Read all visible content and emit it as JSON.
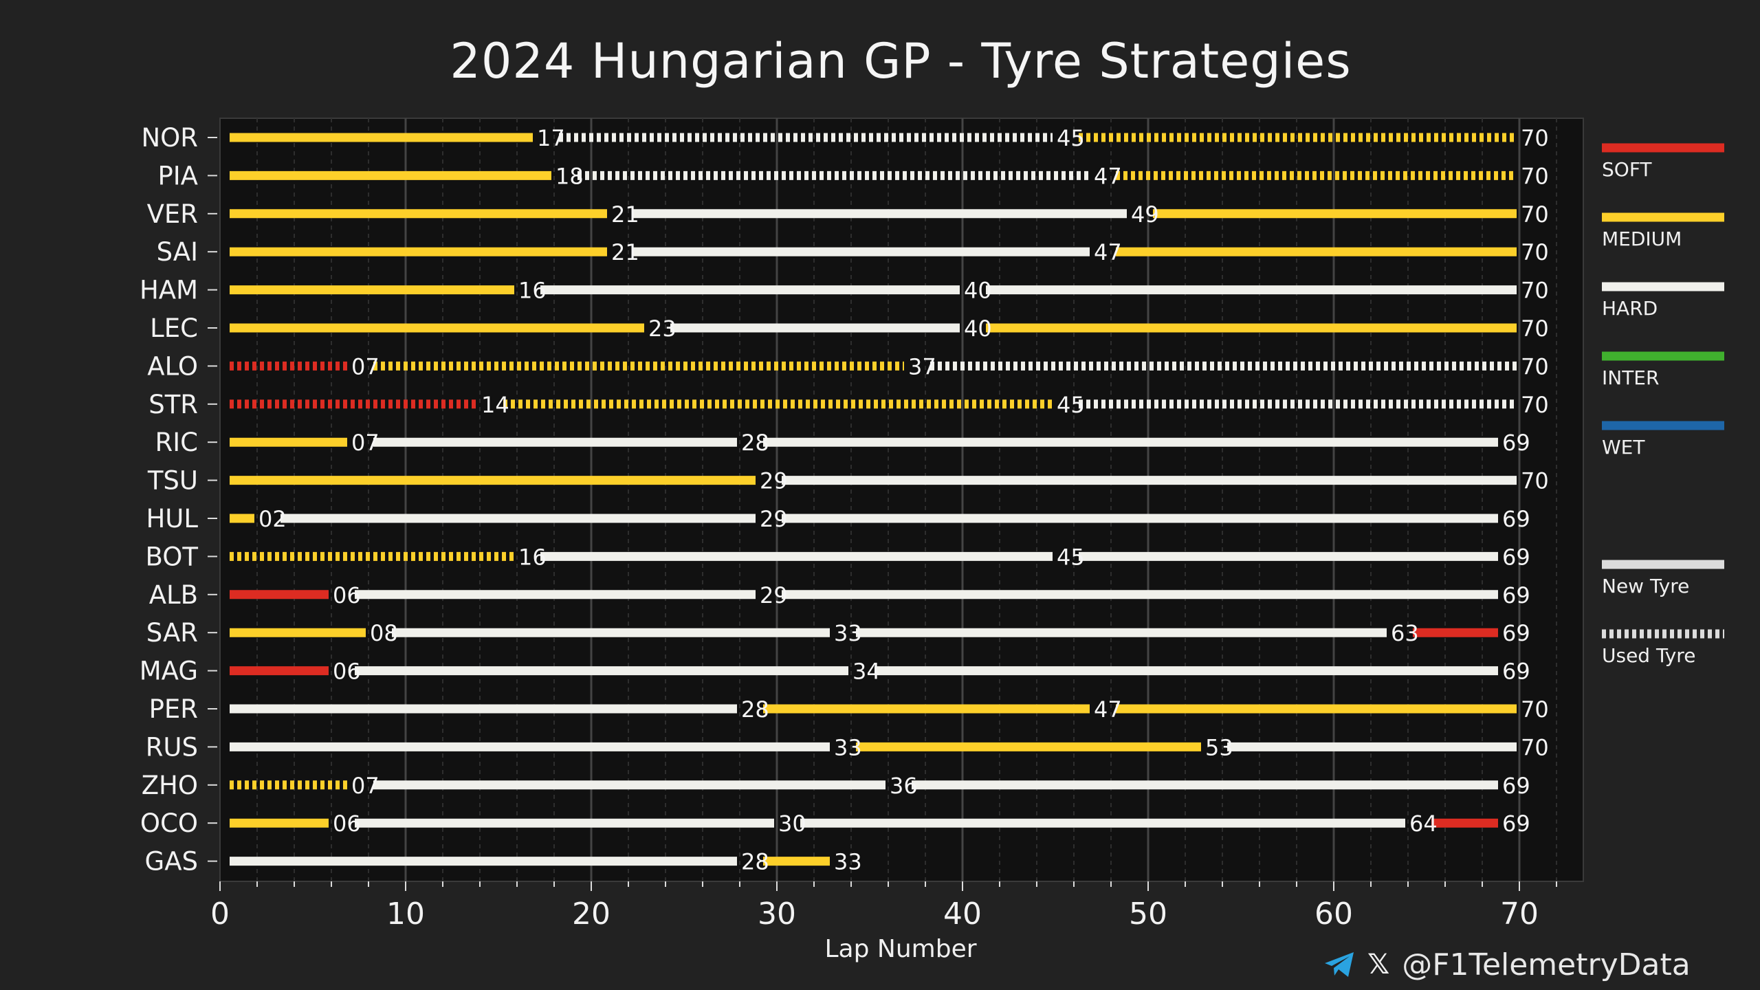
{
  "chart_data": {
    "type": "bar",
    "title": "2024 Hungarian GP - Tyre Strategies",
    "xlabel": "Lap Number",
    "ylabel": "",
    "xlim": [
      0,
      73
    ],
    "x_ticks": [
      0,
      10,
      20,
      30,
      40,
      50,
      60,
      70
    ],
    "grid": "vertical",
    "compounds": [
      {
        "name": "SOFT",
        "color": "#dd2c22"
      },
      {
        "name": "MEDIUM",
        "color": "#fdd02a"
      },
      {
        "name": "HARD",
        "color": "#f0f0eb"
      },
      {
        "name": "INTER",
        "color": "#40b02e"
      },
      {
        "name": "WET",
        "color": "#1e66a8"
      }
    ],
    "tyre_state_legend": [
      {
        "name": "New Tyre",
        "style": "solid"
      },
      {
        "name": "Used Tyre",
        "style": "dashed"
      }
    ],
    "drivers": [
      {
        "name": "NOR",
        "stints": [
          {
            "compound": "MEDIUM",
            "start": 0,
            "end": 17,
            "used": false,
            "label": "17"
          },
          {
            "compound": "HARD",
            "start": 17,
            "end": 45,
            "used": true,
            "label": "45"
          },
          {
            "compound": "MEDIUM",
            "start": 45,
            "end": 70,
            "used": true,
            "label": "70"
          }
        ]
      },
      {
        "name": "PIA",
        "stints": [
          {
            "compound": "MEDIUM",
            "start": 0,
            "end": 18,
            "used": false,
            "label": "18"
          },
          {
            "compound": "HARD",
            "start": 18,
            "end": 47,
            "used": true,
            "label": "47"
          },
          {
            "compound": "MEDIUM",
            "start": 47,
            "end": 70,
            "used": true,
            "label": "70"
          }
        ]
      },
      {
        "name": "VER",
        "stints": [
          {
            "compound": "MEDIUM",
            "start": 0,
            "end": 21,
            "used": false,
            "label": "21"
          },
          {
            "compound": "HARD",
            "start": 21,
            "end": 49,
            "used": false,
            "label": "49"
          },
          {
            "compound": "MEDIUM",
            "start": 49,
            "end": 70,
            "used": false,
            "label": "70"
          }
        ]
      },
      {
        "name": "SAI",
        "stints": [
          {
            "compound": "MEDIUM",
            "start": 0,
            "end": 21,
            "used": false,
            "label": "21"
          },
          {
            "compound": "HARD",
            "start": 21,
            "end": 47,
            "used": false,
            "label": "47"
          },
          {
            "compound": "MEDIUM",
            "start": 47,
            "end": 70,
            "used": false,
            "label": "70"
          }
        ]
      },
      {
        "name": "HAM",
        "stints": [
          {
            "compound": "MEDIUM",
            "start": 0,
            "end": 16,
            "used": false,
            "label": "16"
          },
          {
            "compound": "HARD",
            "start": 16,
            "end": 40,
            "used": false,
            "label": "40"
          },
          {
            "compound": "HARD",
            "start": 40,
            "end": 70,
            "used": false,
            "label": "70"
          }
        ]
      },
      {
        "name": "LEC",
        "stints": [
          {
            "compound": "MEDIUM",
            "start": 0,
            "end": 23,
            "used": false,
            "label": "23"
          },
          {
            "compound": "HARD",
            "start": 23,
            "end": 40,
            "used": false,
            "label": "40"
          },
          {
            "compound": "MEDIUM",
            "start": 40,
            "end": 70,
            "used": false,
            "label": "70"
          }
        ]
      },
      {
        "name": "ALO",
        "stints": [
          {
            "compound": "SOFT",
            "start": 0,
            "end": 7,
            "used": true,
            "label": "07"
          },
          {
            "compound": "MEDIUM",
            "start": 7,
            "end": 37,
            "used": true,
            "label": "37"
          },
          {
            "compound": "HARD",
            "start": 37,
            "end": 70,
            "used": true,
            "label": "70"
          }
        ]
      },
      {
        "name": "STR",
        "stints": [
          {
            "compound": "SOFT",
            "start": 0,
            "end": 14,
            "used": true,
            "label": "14"
          },
          {
            "compound": "MEDIUM",
            "start": 14,
            "end": 45,
            "used": true,
            "label": "45"
          },
          {
            "compound": "HARD",
            "start": 45,
            "end": 70,
            "used": true,
            "label": "70"
          }
        ]
      },
      {
        "name": "RIC",
        "stints": [
          {
            "compound": "MEDIUM",
            "start": 0,
            "end": 7,
            "used": false,
            "label": "07"
          },
          {
            "compound": "HARD",
            "start": 7,
            "end": 28,
            "used": false,
            "label": "28"
          },
          {
            "compound": "HARD",
            "start": 28,
            "end": 69,
            "used": false,
            "label": "69"
          }
        ]
      },
      {
        "name": "TSU",
        "stints": [
          {
            "compound": "MEDIUM",
            "start": 0,
            "end": 29,
            "used": false,
            "label": "29"
          },
          {
            "compound": "HARD",
            "start": 29,
            "end": 70,
            "used": false,
            "label": "70"
          }
        ]
      },
      {
        "name": "HUL",
        "stints": [
          {
            "compound": "MEDIUM",
            "start": 0,
            "end": 2,
            "used": false,
            "label": "02"
          },
          {
            "compound": "HARD",
            "start": 2,
            "end": 29,
            "used": false,
            "label": "29"
          },
          {
            "compound": "HARD",
            "start": 29,
            "end": 69,
            "used": false,
            "label": "69"
          }
        ]
      },
      {
        "name": "BOT",
        "stints": [
          {
            "compound": "MEDIUM",
            "start": 0,
            "end": 16,
            "used": true,
            "label": "16"
          },
          {
            "compound": "HARD",
            "start": 16,
            "end": 45,
            "used": false,
            "label": "45"
          },
          {
            "compound": "HARD",
            "start": 45,
            "end": 69,
            "used": false,
            "label": "69"
          }
        ]
      },
      {
        "name": "ALB",
        "stints": [
          {
            "compound": "SOFT",
            "start": 0,
            "end": 6,
            "used": false,
            "label": "06"
          },
          {
            "compound": "HARD",
            "start": 6,
            "end": 29,
            "used": false,
            "label": "29"
          },
          {
            "compound": "HARD",
            "start": 29,
            "end": 69,
            "used": false,
            "label": "69"
          }
        ]
      },
      {
        "name": "SAR",
        "stints": [
          {
            "compound": "MEDIUM",
            "start": 0,
            "end": 8,
            "used": false,
            "label": "08"
          },
          {
            "compound": "HARD",
            "start": 8,
            "end": 33,
            "used": false,
            "label": "33"
          },
          {
            "compound": "HARD",
            "start": 33,
            "end": 63,
            "used": false,
            "label": "63"
          },
          {
            "compound": "SOFT",
            "start": 63,
            "end": 69,
            "used": false,
            "label": "69"
          }
        ]
      },
      {
        "name": "MAG",
        "stints": [
          {
            "compound": "SOFT",
            "start": 0,
            "end": 6,
            "used": false,
            "label": "06"
          },
          {
            "compound": "HARD",
            "start": 6,
            "end": 34,
            "used": false,
            "label": "34"
          },
          {
            "compound": "HARD",
            "start": 34,
            "end": 69,
            "used": false,
            "label": "69"
          }
        ]
      },
      {
        "name": "PER",
        "stints": [
          {
            "compound": "HARD",
            "start": 0,
            "end": 28,
            "used": false,
            "label": "28"
          },
          {
            "compound": "MEDIUM",
            "start": 28,
            "end": 47,
            "used": false,
            "label": "47"
          },
          {
            "compound": "MEDIUM",
            "start": 47,
            "end": 70,
            "used": false,
            "label": "70"
          }
        ]
      },
      {
        "name": "RUS",
        "stints": [
          {
            "compound": "HARD",
            "start": 0,
            "end": 33,
            "used": false,
            "label": "33"
          },
          {
            "compound": "MEDIUM",
            "start": 33,
            "end": 53,
            "used": false,
            "label": "53"
          },
          {
            "compound": "HARD",
            "start": 53,
            "end": 70,
            "used": false,
            "label": "70"
          }
        ]
      },
      {
        "name": "ZHO",
        "stints": [
          {
            "compound": "MEDIUM",
            "start": 0,
            "end": 7,
            "used": true,
            "label": "07"
          },
          {
            "compound": "HARD",
            "start": 7,
            "end": 36,
            "used": false,
            "label": "36"
          },
          {
            "compound": "HARD",
            "start": 36,
            "end": 69,
            "used": false,
            "label": "69"
          }
        ]
      },
      {
        "name": "OCO",
        "stints": [
          {
            "compound": "MEDIUM",
            "start": 0,
            "end": 6,
            "used": false,
            "label": "06"
          },
          {
            "compound": "HARD",
            "start": 6,
            "end": 30,
            "used": false,
            "label": "30"
          },
          {
            "compound": "HARD",
            "start": 30,
            "end": 64,
            "used": false,
            "label": "64"
          },
          {
            "compound": "SOFT",
            "start": 64,
            "end": 69,
            "used": false,
            "label": "69"
          }
        ]
      },
      {
        "name": "GAS",
        "stints": [
          {
            "compound": "HARD",
            "start": 0,
            "end": 28,
            "used": false,
            "label": "28"
          },
          {
            "compound": "MEDIUM",
            "start": 28,
            "end": 33,
            "used": false,
            "label": "33"
          }
        ]
      }
    ]
  },
  "watermark": "@F1TelemetryData",
  "credit": {
    "handle": "@F1TelemetryData",
    "telegram_icon": "telegram-icon",
    "x_icon": "x-logo-icon",
    "x_glyph": "𝕏"
  }
}
